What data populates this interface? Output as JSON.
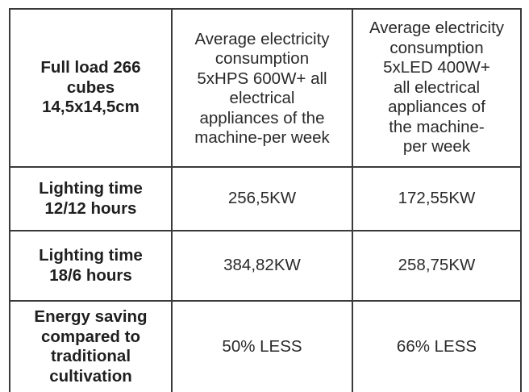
{
  "table": {
    "header": {
      "first": "Full load 266\ncubes\n14,5x14,5cm",
      "col1": "Average electricity\nconsumption\n5xHPS 600W+ all\nelectrical\nappliances of the\nmachine-per week",
      "col2": "Average electricity\nconsumption\n5xLED 400W+\nall electrical\nappliances of\nthe machine-\nper week"
    },
    "rows": [
      {
        "label": "Lighting time\n12/12 hours",
        "hps": "256,5KW",
        "led": "172,55KW"
      },
      {
        "label": "Lighting time\n18/6 hours",
        "hps": "384,82KW",
        "led": "258,75KW"
      },
      {
        "label": "Energy saving\ncompared to\ntraditional\ncultivation",
        "hps": "50% LESS",
        "led": "66% LESS"
      }
    ]
  }
}
